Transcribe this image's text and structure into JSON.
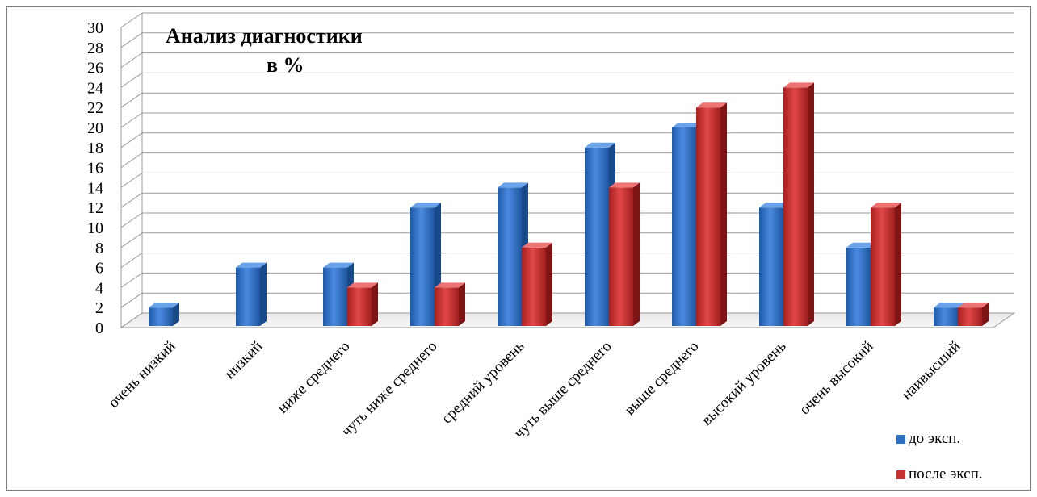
{
  "chart_data": {
    "type": "bar",
    "title": "Анализ диагностики",
    "subtitle": "в %",
    "categories": [
      "очень низкий",
      "низкий",
      "ниже среднего",
      "чуть ниже среднего",
      "средний уровень",
      "чуть выше среднего",
      "выше среднего",
      "высокий уровень",
      "очень высокий",
      "наивысший"
    ],
    "series": [
      {
        "name": "до эксп.",
        "color": "#2e6fc4",
        "values": [
          2,
          6,
          6,
          12,
          14,
          18,
          20,
          12,
          8,
          2
        ]
      },
      {
        "name": "после эксп.",
        "color": "#c83232",
        "values": [
          0,
          0,
          4,
          4,
          8,
          14,
          22,
          24,
          12,
          2
        ]
      }
    ],
    "ylim": [
      0,
      30
    ],
    "yticks": [
      "0",
      "2",
      "4",
      "6",
      "8",
      "10",
      "12",
      "14",
      "16",
      "18",
      "20",
      "22",
      "24",
      "26",
      "28",
      "30"
    ],
    "grid": true,
    "legend_position": "bottom-right",
    "style": "3d-clustered-column"
  }
}
